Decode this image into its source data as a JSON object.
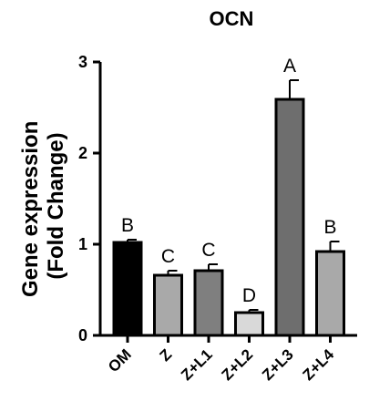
{
  "chart_data": {
    "type": "bar",
    "title": "OCN",
    "ylabel_line1": "Gene expression",
    "ylabel_line2": "(Fold Change)",
    "xlabel": "",
    "ylim": [
      0,
      3
    ],
    "yticks": [
      0,
      1,
      2,
      3
    ],
    "categories": [
      "OM",
      "Z",
      "Z+L1",
      "Z+L2",
      "Z+L3",
      "Z+L4"
    ],
    "values": [
      1.02,
      0.66,
      0.71,
      0.25,
      2.59,
      0.92
    ],
    "errors": [
      0.03,
      0.05,
      0.07,
      0.03,
      0.21,
      0.11
    ],
    "significance": [
      "B",
      "C",
      "C",
      "D",
      "A",
      "B"
    ],
    "bar_colors": [
      "#000000",
      "#a9a9a9",
      "#7f7f7f",
      "#d9d9d9",
      "#6e6e6e",
      "#a9a9a9"
    ],
    "grid": false,
    "legend": "none"
  }
}
